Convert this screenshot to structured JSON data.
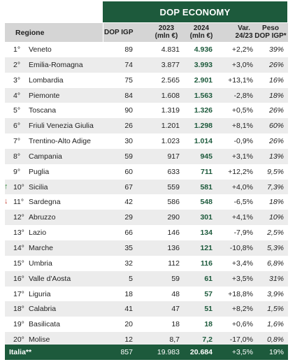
{
  "header": {
    "title": "DOP ECONOMY",
    "col_region": "Regione",
    "col_dop": "DOP IGP",
    "col_2023_line1": "2023",
    "col_2023_line2": "(mln €)",
    "col_2024_line1": "2024",
    "col_2024_line2": "(mln €)",
    "col_var_line1": "Var.",
    "col_var_line2": "24/23",
    "col_peso_line1": "Peso",
    "col_peso_line2": "DOP IGP*"
  },
  "rows": [
    {
      "rank": "1°",
      "name": "Veneto",
      "dop": "89",
      "v2023": "4.831",
      "v2024": "4.936",
      "var": "+2,2%",
      "peso": "39%",
      "arrow": ""
    },
    {
      "rank": "2°",
      "name": "Emilia-Romagna",
      "dop": "74",
      "v2023": "3.877",
      "v2024": "3.993",
      "var": "+3,0%",
      "peso": "26%",
      "arrow": ""
    },
    {
      "rank": "3°",
      "name": "Lombardia",
      "dop": "75",
      "v2023": "2.565",
      "v2024": "2.901",
      "var": "+13,1%",
      "peso": "16%",
      "arrow": ""
    },
    {
      "rank": "4°",
      "name": "Piemonte",
      "dop": "84",
      "v2023": "1.608",
      "v2024": "1.563",
      "var": "-2,8%",
      "peso": "18%",
      "arrow": ""
    },
    {
      "rank": "5°",
      "name": "Toscana",
      "dop": "90",
      "v2023": "1.319",
      "v2024": "1.326",
      "var": "+0,5%",
      "peso": "26%",
      "arrow": ""
    },
    {
      "rank": "6°",
      "name": "Friuli Venezia Giulia",
      "dop": "26",
      "v2023": "1.201",
      "v2024": "1.298",
      "var": "+8,1%",
      "peso": "60%",
      "arrow": ""
    },
    {
      "rank": "7°",
      "name": "Trentino-Alto Adige",
      "dop": "30",
      "v2023": "1.023",
      "v2024": "1.014",
      "var": "-0,9%",
      "peso": "26%",
      "arrow": ""
    },
    {
      "rank": "8°",
      "name": "Campania",
      "dop": "59",
      "v2023": "917",
      "v2024": "945",
      "var": "+3,1%",
      "peso": "13%",
      "arrow": ""
    },
    {
      "rank": "9°",
      "name": "Puglia",
      "dop": "60",
      "v2023": "633",
      "v2024": "711",
      "var": "+12,2%",
      "peso": "9,5%",
      "arrow": ""
    },
    {
      "rank": "10°",
      "name": "Sicilia",
      "dop": "67",
      "v2023": "559",
      "v2024": "581",
      "var": "+4,0%",
      "peso": "7,3%",
      "arrow": "up"
    },
    {
      "rank": "11°",
      "name": "Sardegna",
      "dop": "42",
      "v2023": "586",
      "v2024": "548",
      "var": "-6,5%",
      "peso": "18%",
      "arrow": "down"
    },
    {
      "rank": "12°",
      "name": "Abruzzo",
      "dop": "29",
      "v2023": "290",
      "v2024": "301",
      "var": "+4,1%",
      "peso": "10%",
      "arrow": ""
    },
    {
      "rank": "13°",
      "name": "Lazio",
      "dop": "66",
      "v2023": "146",
      "v2024": "134",
      "var": "-7,9%",
      "peso": "2,5%",
      "arrow": ""
    },
    {
      "rank": "14°",
      "name": "Marche",
      "dop": "35",
      "v2023": "136",
      "v2024": "121",
      "var": "-10,8%",
      "peso": "5,3%",
      "arrow": ""
    },
    {
      "rank": "15°",
      "name": "Umbria",
      "dop": "32",
      "v2023": "112",
      "v2024": "116",
      "var": "+3,4%",
      "peso": "6,8%",
      "arrow": ""
    },
    {
      "rank": "16°",
      "name": "Valle d'Aosta",
      "dop": "5",
      "v2023": "59",
      "v2024": "61",
      "var": "+3,5%",
      "peso": "31%",
      "arrow": ""
    },
    {
      "rank": "17°",
      "name": "Liguria",
      "dop": "18",
      "v2023": "48",
      "v2024": "57",
      "var": "+18,8%",
      "peso": "3,9%",
      "arrow": ""
    },
    {
      "rank": "18°",
      "name": "Calabria",
      "dop": "41",
      "v2023": "47",
      "v2024": "51",
      "var": "+8,2%",
      "peso": "1,5%",
      "arrow": ""
    },
    {
      "rank": "19°",
      "name": "Basilicata",
      "dop": "20",
      "v2023": "18",
      "v2024": "18",
      "var": "+0,6%",
      "peso": "1,6%",
      "arrow": ""
    },
    {
      "rank": "20°",
      "name": "Molise",
      "dop": "12",
      "v2023": "8,7",
      "v2024": "7,2",
      "var": "-17,0%",
      "peso": "0,8%",
      "arrow": ""
    }
  ],
  "total": {
    "name": "Italia**",
    "dop": "857",
    "v2023": "19.983",
    "v2024": "20.684",
    "var": "+3,5%",
    "peso": "19%"
  },
  "icons": {
    "up": "arrow-up-icon",
    "down": "arrow-down-icon"
  },
  "colors": {
    "brand_green": "#1d5a3c",
    "up_green": "#2f8a3a",
    "down_red": "#c0392b"
  }
}
